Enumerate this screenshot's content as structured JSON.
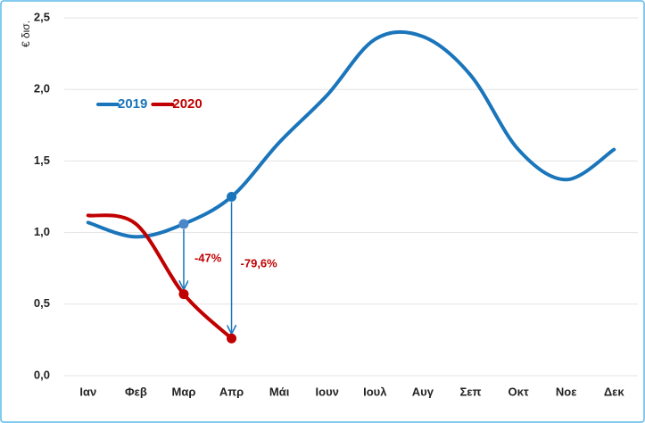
{
  "chart_data": {
    "type": "line",
    "ylabel": "€ δισ.",
    "categories": [
      "Ιαν",
      "Φεβ",
      "Μαρ",
      "Απρ",
      "Μάι",
      "Ιουν",
      "Ιουλ",
      "Αυγ",
      "Σεπ",
      "Οκτ",
      "Νοε",
      "Δεκ"
    ],
    "series": [
      {
        "name": "2019",
        "color": "#1a75bb",
        "values": [
          1.07,
          0.97,
          1.06,
          1.25,
          1.63,
          1.96,
          2.35,
          2.37,
          2.1,
          1.58,
          1.37,
          1.58
        ]
      },
      {
        "name": "2020",
        "color": "#c00000",
        "values": [
          1.12,
          1.06,
          0.57,
          0.26,
          null,
          null,
          null,
          null,
          null,
          null,
          null,
          null
        ]
      }
    ],
    "ylim": [
      0,
      2.5
    ],
    "yticks": [
      {
        "value": 0,
        "label": "0,0"
      },
      {
        "value": 0.5,
        "label": "0,5"
      },
      {
        "value": 1,
        "label": "1,0"
      },
      {
        "value": 1.5,
        "label": "1,5"
      },
      {
        "value": 2,
        "label": "2,0"
      },
      {
        "value": 2.5,
        "label": "2,5"
      }
    ],
    "grid": true,
    "legend": "upper left",
    "annotations": [
      {
        "text": "-47%"
      },
      {
        "text": "-79,6%"
      }
    ]
  }
}
